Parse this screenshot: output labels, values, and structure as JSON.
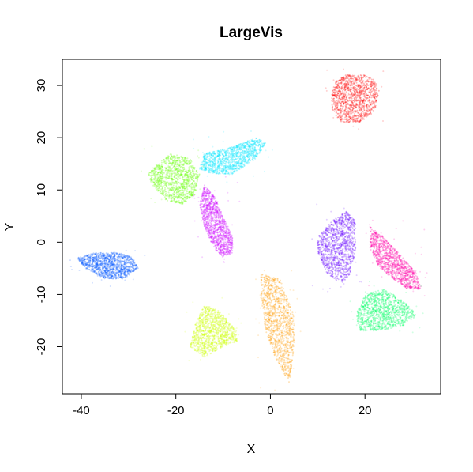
{
  "chart_data": {
    "type": "scatter",
    "title": "LargeVis",
    "xlabel": "X",
    "ylabel": "Y",
    "xlim": [
      -44,
      36
    ],
    "ylim": [
      -29,
      35
    ],
    "xticks": [
      -40,
      -20,
      0,
      20
    ],
    "xtick_labels": [
      "-40",
      "-20",
      "0",
      "20"
    ],
    "yticks": [
      -20,
      -10,
      0,
      10,
      20,
      30
    ],
    "ytick_labels": [
      "-20",
      "-10",
      "0",
      "10",
      "20",
      "30"
    ],
    "grid": false,
    "legend": "none",
    "series": [
      {
        "color": "#ff0000",
        "polygon": [
          [
            16,
            32
          ],
          [
            20,
            32
          ],
          [
            22,
            31
          ],
          [
            23,
            29
          ],
          [
            22,
            25
          ],
          [
            19,
            23
          ],
          [
            15,
            23
          ],
          [
            13,
            25
          ],
          [
            13,
            29
          ],
          [
            14,
            31
          ]
        ]
      },
      {
        "color": "#00e5ff",
        "polygon": [
          [
            -14,
            17
          ],
          [
            -9,
            18
          ],
          [
            -3,
            20
          ],
          [
            -1,
            19
          ],
          [
            -3,
            16
          ],
          [
            -8,
            13
          ],
          [
            -12,
            13
          ],
          [
            -15,
            14
          ]
        ]
      },
      {
        "color": "#66ff00",
        "polygon": [
          [
            -21,
            17
          ],
          [
            -17,
            16
          ],
          [
            -15,
            13
          ],
          [
            -16,
            9
          ],
          [
            -19,
            7
          ],
          [
            -22,
            8
          ],
          [
            -25,
            11
          ],
          [
            -26,
            13
          ],
          [
            -24,
            15
          ]
        ]
      },
      {
        "color": "#cc00ff",
        "polygon": [
          [
            -14,
            11
          ],
          [
            -12,
            9
          ],
          [
            -10,
            5
          ],
          [
            -8,
            1
          ],
          [
            -8,
            -2
          ],
          [
            -10,
            -3
          ],
          [
            -12,
            -1
          ],
          [
            -14,
            3
          ],
          [
            -15,
            7
          ]
        ]
      },
      {
        "color": "#0055ff",
        "polygon": [
          [
            -41,
            -3
          ],
          [
            -37,
            -2
          ],
          [
            -32,
            -2
          ],
          [
            -29,
            -3
          ],
          [
            -28,
            -5
          ],
          [
            -31,
            -7
          ],
          [
            -35,
            -7
          ],
          [
            -39,
            -5
          ]
        ]
      },
      {
        "color": "#6600ff",
        "polygon": [
          [
            13,
            4
          ],
          [
            16,
            6
          ],
          [
            18,
            4
          ],
          [
            18,
            -2
          ],
          [
            17,
            -6
          ],
          [
            15,
            -8
          ],
          [
            12,
            -6
          ],
          [
            10,
            -2
          ],
          [
            10,
            1
          ]
        ]
      },
      {
        "color": "#ff00aa",
        "polygon": [
          [
            21,
            3
          ],
          [
            24,
            1
          ],
          [
            27,
            -2
          ],
          [
            31,
            -6
          ],
          [
            32,
            -9
          ],
          [
            29,
            -9
          ],
          [
            26,
            -7
          ],
          [
            23,
            -5
          ],
          [
            21,
            -1
          ]
        ]
      },
      {
        "color": "#00ff66",
        "polygon": [
          [
            20,
            -10
          ],
          [
            24,
            -9
          ],
          [
            28,
            -11
          ],
          [
            31,
            -14
          ],
          [
            28,
            -16
          ],
          [
            23,
            -17
          ],
          [
            19,
            -17
          ],
          [
            18,
            -14
          ]
        ]
      },
      {
        "color": "#ccff00",
        "polygon": [
          [
            -14,
            -12
          ],
          [
            -11,
            -13
          ],
          [
            -7,
            -17
          ],
          [
            -7,
            -19
          ],
          [
            -10,
            -20
          ],
          [
            -14,
            -22
          ],
          [
            -17,
            -20
          ],
          [
            -16,
            -16
          ]
        ]
      },
      {
        "color": "#ff9900",
        "polygon": [
          [
            -2,
            -6
          ],
          [
            2,
            -7
          ],
          [
            5,
            -14
          ],
          [
            5,
            -20
          ],
          [
            4,
            -27
          ],
          [
            1,
            -22
          ],
          [
            -1,
            -17
          ],
          [
            -2,
            -11
          ]
        ]
      }
    ]
  }
}
